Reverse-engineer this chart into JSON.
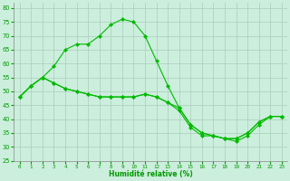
{
  "xlabel": "Humidité relative (%)",
  "background_color": "#cceedd",
  "grid_color": "#aaccbb",
  "line_color": "#00bb00",
  "marker_color": "#00bb00",
  "xlim": [
    -0.5,
    23.5
  ],
  "ylim": [
    25,
    82
  ],
  "yticks": [
    25,
    30,
    35,
    40,
    45,
    50,
    55,
    60,
    65,
    70,
    75,
    80
  ],
  "xticks": [
    0,
    1,
    2,
    3,
    4,
    5,
    6,
    7,
    8,
    9,
    10,
    11,
    12,
    13,
    14,
    15,
    16,
    17,
    18,
    19,
    20,
    21,
    22,
    23
  ],
  "series": [
    [
      48,
      52,
      55,
      59,
      65,
      67,
      67,
      70,
      74,
      76,
      75,
      70,
      61,
      52,
      44,
      38,
      35,
      34,
      33,
      33,
      35,
      39,
      41,
      41
    ],
    [
      48,
      52,
      55,
      53,
      51,
      50,
      49,
      48,
      48,
      48,
      48,
      49,
      48,
      46,
      44,
      38,
      35,
      34,
      33,
      33,
      35,
      39,
      41,
      41
    ],
    [
      48,
      52,
      55,
      53,
      51,
      50,
      49,
      48,
      48,
      48,
      48,
      49,
      48,
      46,
      43,
      37,
      34,
      34,
      33,
      32,
      34,
      38,
      41,
      41
    ]
  ]
}
